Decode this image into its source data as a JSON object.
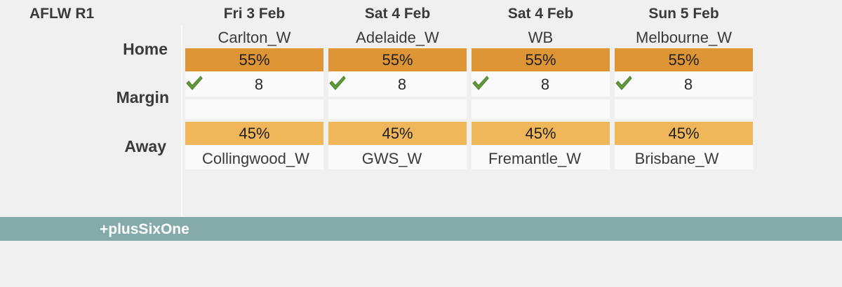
{
  "round_title": "AFLW R1",
  "row_labels": {
    "home": "Home",
    "margin": "Margin",
    "away": "Away"
  },
  "matches": [
    {
      "date": "Fri 3 Feb",
      "home_team": "Carlton_W",
      "home_pct": "55%",
      "margin": "8",
      "away_pct": "45%",
      "away_team": "Collingwood_W"
    },
    {
      "date": "Sat 4 Feb",
      "home_team": "Adelaide_W",
      "home_pct": "55%",
      "margin": "8",
      "away_pct": "45%",
      "away_team": "GWS_W"
    },
    {
      "date": "Sat 4 Feb",
      "home_team": "WB",
      "home_pct": "55%",
      "margin": "8",
      "away_pct": "45%",
      "away_team": "Fremantle_W"
    },
    {
      "date": "Sun 5 Feb",
      "home_team": "Melbourne_W",
      "home_pct": "55%",
      "margin": "8",
      "away_pct": "45%",
      "away_team": "Brisbane_W"
    }
  ],
  "icons": {
    "tick": "check-icon"
  },
  "colors": {
    "home_bar": "#dd9535",
    "away_bar": "#f0b75a",
    "footer": "#84aaaa",
    "tick": "#5f9a3c"
  },
  "footer": {
    "brand": "+plusSixOne"
  }
}
